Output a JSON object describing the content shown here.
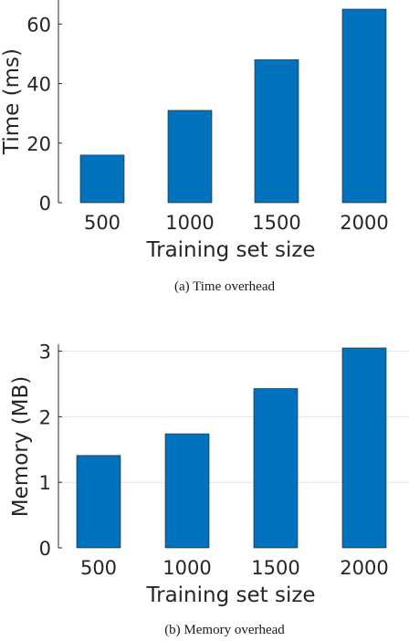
{
  "chart_data": [
    {
      "type": "bar",
      "categories": [
        "500",
        "1000",
        "1500",
        "2000"
      ],
      "values": [
        16,
        31,
        48,
        65
      ],
      "xlabel": "Training set size",
      "ylabel": "Time (ms)",
      "ylim": [
        0,
        65
      ],
      "yticks": [
        "0",
        "20",
        "40",
        "60"
      ],
      "caption": "(a)  Time overhead",
      "bar_color": "#0072BD",
      "grid": false
    },
    {
      "type": "bar",
      "categories": [
        "500",
        "1000",
        "1500",
        "2000"
      ],
      "values": [
        1.41,
        1.74,
        2.43,
        3.05
      ],
      "xlabel": "Training set size",
      "ylabel": "Memory (MB)",
      "ylim": [
        0,
        3.05
      ],
      "yticks": [
        "0",
        "1",
        "2",
        "3"
      ],
      "caption": "(b)  Memory overhead",
      "bar_color": "#0072BD",
      "grid": true
    }
  ]
}
